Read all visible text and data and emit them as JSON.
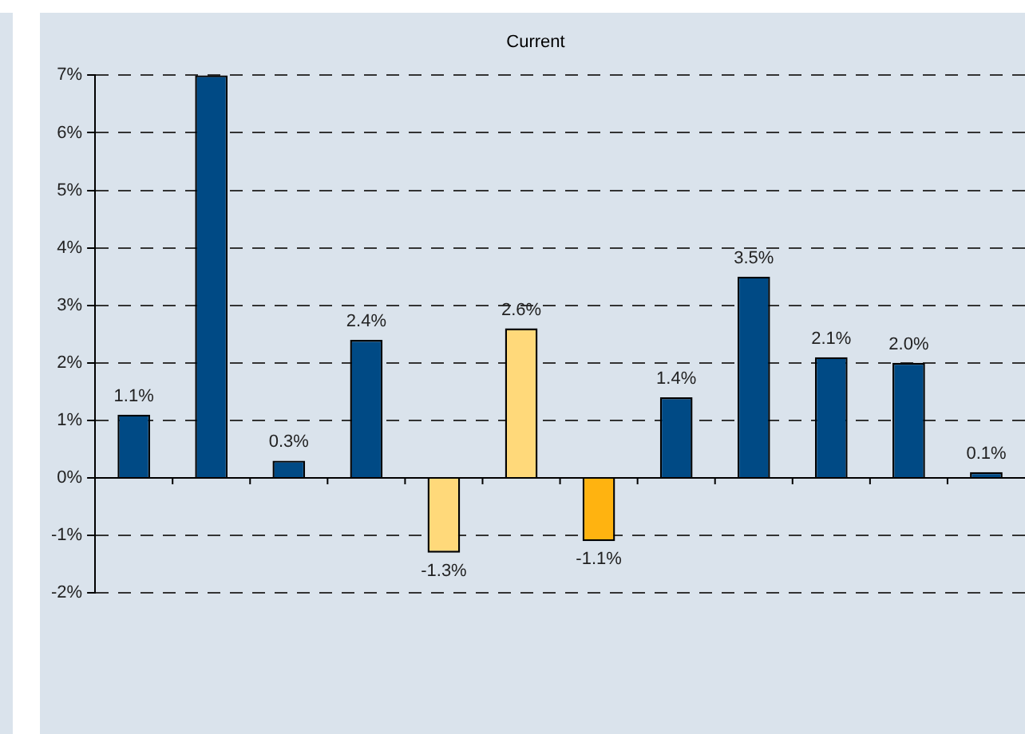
{
  "chart_data": {
    "type": "bar",
    "title": "Current",
    "categories": [
      null,
      null,
      null,
      null,
      null,
      null,
      null,
      null,
      null,
      null,
      null,
      null
    ],
    "values": [
      1.1,
      7.0,
      0.3,
      2.4,
      -1.3,
      2.6,
      -1.1,
      1.4,
      3.5,
      2.1,
      2.0,
      0.1
    ],
    "value_labels": [
      "1.1%",
      null,
      "0.3%",
      "2.4%",
      "-1.3%",
      "2.6%",
      "-1.1%",
      "1.4%",
      "3.5%",
      "2.1%",
      "2.0%",
      "0.1%"
    ],
    "colors": [
      "#004a85",
      "#004a85",
      "#004a85",
      "#004a85",
      "#ffd97a",
      "#ffd97a",
      "#ffb310",
      "#004a85",
      "#004a85",
      "#004a85",
      "#004a85",
      "#004a85"
    ],
    "ylim": [
      -2,
      7
    ],
    "yticks": [
      {
        "value": -2,
        "label": "-2%"
      },
      {
        "value": -1,
        "label": "-1%"
      },
      {
        "value": 0,
        "label": "0%"
      },
      {
        "value": 1,
        "label": "1%"
      },
      {
        "value": 2,
        "label": "2%"
      },
      {
        "value": 3,
        "label": "3%"
      },
      {
        "value": 4,
        "label": "4%"
      },
      {
        "value": 5,
        "label": "5%"
      },
      {
        "value": 6,
        "label": "6%"
      },
      {
        "value": 7,
        "label": "7%"
      }
    ],
    "grid": "y",
    "legend": false
  }
}
